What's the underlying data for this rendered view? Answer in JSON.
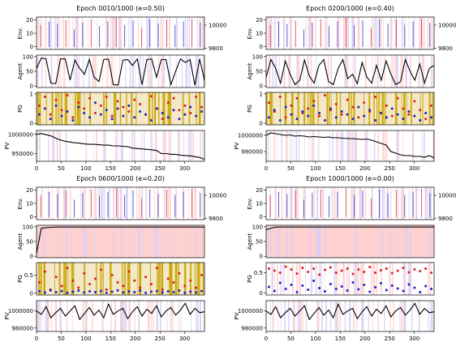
{
  "chart_data": [
    {
      "type": "composite",
      "title": "Epoch 0010/1000 (e=0.50)",
      "x_ticks": [
        0,
        50,
        100,
        150,
        200,
        250,
        300
      ],
      "xlim": [
        0,
        340
      ],
      "panels": [
        {
          "kind": "env",
          "ylabel": "Env.",
          "ylim": [
            -2,
            22
          ],
          "y_ticks": [
            0,
            10,
            20
          ],
          "ylim_right": [
            9790,
            10070
          ],
          "y_ticks_right": [
            9800,
            10000
          ],
          "price_series": [
            10000,
            10030,
            10010,
            10040,
            9960,
            10020,
            10050,
            9990,
            10030,
            10060,
            10000,
            10040,
            9970,
            10050,
            10010,
            10045,
            10000,
            10030,
            10055,
            10020
          ]
        },
        {
          "kind": "agent",
          "ylabel": "Agent",
          "ylim": [
            -5,
            105
          ],
          "y_ticks": [
            0,
            50,
            100
          ],
          "series": [
            60,
            95,
            92,
            10,
            8,
            92,
            92,
            20,
            88,
            60,
            40,
            90,
            30,
            15,
            90,
            92,
            5,
            3,
            88,
            90,
            70,
            92,
            5,
            90,
            92,
            30,
            90,
            90,
            5,
            50,
            92,
            80,
            90,
            3,
            92,
            20
          ]
        },
        {
          "kind": "pg",
          "ylabel": "PG",
          "ylim": [
            -0.05,
            1.05
          ],
          "y_ticks": [
            0,
            1
          ],
          "red_points": [
            0.6,
            0.9,
            0.3,
            0.8,
            0.45,
            0.95,
            0.2,
            0.7,
            0.5,
            0.85,
            0.35,
            0.6,
            0.9,
            0.25,
            0.75,
            0.55,
            0.4,
            0.8,
            0.65,
            0.3,
            0.92,
            0.5,
            0.15,
            0.7,
            0.85,
            0.45,
            0.6,
            0.35,
            0.9,
            0.55
          ],
          "blue_points": [
            0.3,
            0.5,
            0.15,
            0.6,
            0.25,
            0.4,
            0.1,
            0.55,
            0.35,
            0.2,
            0.7,
            0.3,
            0.45,
            0.15,
            0.5,
            0.25,
            0.6,
            0.2,
            0.4,
            0.3,
            0.1,
            0.5,
            0.35,
            0.2,
            0.45,
            0.15,
            0.3,
            0.55,
            0.25,
            0.4
          ]
        },
        {
          "kind": "pv",
          "ylabel": "PV",
          "ylim": [
            930000,
            1010000
          ],
          "y_ticks": [
            950000,
            1000000
          ],
          "series": [
            1000000,
            1002000,
            999000,
            996000,
            990000,
            985000,
            982000,
            980000,
            978000,
            977000,
            975000,
            974000,
            974000,
            973000,
            972000,
            972000,
            970000,
            970000,
            969000,
            968000,
            964000,
            963000,
            962000,
            961000,
            960000,
            958000,
            950000,
            950000,
            948000,
            948000,
            946000,
            945000,
            944000,
            942000,
            940000,
            935000
          ]
        }
      ]
    },
    {
      "type": "composite",
      "title": "Epoch 0200/1000 (e=0.40)",
      "x_ticks": [
        0,
        50,
        100,
        150,
        200,
        250,
        300
      ],
      "xlim": [
        0,
        340
      ],
      "panels": [
        {
          "kind": "env",
          "ylabel": "Env.",
          "ylim": [
            -2,
            22
          ],
          "y_ticks": [
            0,
            10,
            20
          ],
          "ylim_right": [
            9790,
            10070
          ],
          "y_ticks_right": [
            9800,
            10000
          ],
          "price_series": [
            10000,
            10030,
            10010,
            10040,
            9960,
            10020,
            10050,
            9990,
            10030,
            10060,
            10000,
            10040,
            9970,
            10050,
            10010,
            10045,
            10000,
            10030,
            10055,
            10020
          ]
        },
        {
          "kind": "agent",
          "ylabel": "Agent",
          "ylim": [
            -5,
            105
          ],
          "y_ticks": [
            0,
            50,
            100
          ],
          "series": [
            30,
            90,
            60,
            10,
            85,
            40,
            5,
            20,
            88,
            35,
            10,
            70,
            90,
            15,
            5,
            60,
            90,
            25,
            40,
            8,
            80,
            30,
            10,
            70,
            20,
            85,
            40,
            5,
            15,
            90,
            50,
            20,
            75,
            10,
            60,
            70
          ]
        },
        {
          "kind": "pg",
          "ylabel": "PG",
          "ylim": [
            -0.05,
            1.05
          ],
          "y_ticks": [
            0,
            1
          ],
          "red_points": [
            0.7,
            0.4,
            0.9,
            0.2,
            0.6,
            0.85,
            0.35,
            0.5,
            0.75,
            0.25,
            0.95,
            0.45,
            0.65,
            0.3,
            0.8,
            0.55,
            0.2,
            0.7,
            0.4,
            0.9,
            0.35,
            0.6,
            0.25,
            0.85,
            0.5,
            0.3,
            0.75,
            0.45,
            0.15,
            0.6
          ],
          "blue_points": [
            0.2,
            0.45,
            0.1,
            0.55,
            0.3,
            0.15,
            0.4,
            0.25,
            0.6,
            0.35,
            0.1,
            0.5,
            0.2,
            0.4,
            0.3,
            0.15,
            0.55,
            0.25,
            0.45,
            0.1,
            0.35,
            0.2,
            0.5,
            0.3,
            0.15,
            0.4,
            0.25,
            0.1,
            0.35,
            0.2
          ]
        },
        {
          "kind": "pv",
          "ylabel": "PV",
          "ylim": [
            968000,
            1006000
          ],
          "y_ticks": [
            980000,
            1000000
          ],
          "series": [
            1000000,
            1003000,
            1002000,
            1001000,
            1000000,
            1000500,
            999000,
            999500,
            999000,
            998000,
            998500,
            998000,
            997500,
            998000,
            997000,
            997000,
            996500,
            996000,
            996000,
            995500,
            995000,
            995500,
            994000,
            992000,
            990000,
            988000,
            980000,
            978000,
            976000,
            975000,
            975000,
            974000,
            974000,
            973000,
            975000,
            972000
          ]
        }
      ]
    },
    {
      "type": "composite",
      "title": "Epoch 0600/1000 (e=0.20)",
      "x_ticks": [
        0,
        50,
        100,
        150,
        200,
        250,
        300
      ],
      "xlim": [
        0,
        340
      ],
      "panels": [
        {
          "kind": "env",
          "ylabel": "Env.",
          "ylim": [
            -2,
            22
          ],
          "y_ticks": [
            0,
            10,
            20
          ],
          "ylim_right": [
            9790,
            10070
          ],
          "y_ticks_right": [
            9800,
            10000
          ],
          "price_series": [
            10000,
            10030,
            10010,
            10040,
            9960,
            10020,
            10050,
            9990,
            10030,
            10060,
            10000,
            10040,
            9970,
            10050,
            10010,
            10045,
            10000,
            10030,
            10055,
            10020
          ]
        },
        {
          "kind": "agent",
          "ylabel": "Agent",
          "ylim": [
            -5,
            105
          ],
          "y_ticks": [
            0,
            50,
            100
          ],
          "series": [
            10,
            95,
            97,
            98,
            99,
            99,
            99,
            99,
            99,
            99,
            99,
            99,
            99,
            99,
            99,
            99,
            99,
            99,
            99,
            99,
            99,
            99,
            99,
            99,
            99,
            99,
            99,
            99,
            99,
            99,
            99,
            99,
            99,
            99,
            99,
            99
          ]
        },
        {
          "kind": "pg",
          "ylabel": "PG",
          "ylim": [
            -0.05,
            0.85
          ],
          "y_ticks": [
            0,
            0.5
          ],
          "red_points": [
            0.3,
            0.6,
            0.1,
            0.45,
            0.2,
            0.7,
            0.35,
            0.15,
            0.55,
            0.25,
            0.4,
            0.65,
            0.1,
            0.5,
            0.3,
            0.2,
            0.6,
            0.35,
            0.15,
            0.45,
            0.25,
            0.7,
            0.1,
            0.4,
            0.3,
            0.55,
            0.2,
            0.35,
            0.15,
            0.5
          ],
          "blue_points": [
            0.05,
            0.02,
            0.08,
            0.03,
            0.06,
            0.01,
            0.04,
            0.07,
            0.02,
            0.05,
            0.03,
            0.06,
            0.01,
            0.04,
            0.08,
            0.02,
            0.05,
            0.03,
            0.07,
            0.01,
            0.04,
            0.06,
            0.02,
            0.05,
            0.03,
            0.07,
            0.01,
            0.04,
            0.02,
            0.06
          ]
        },
        {
          "kind": "pv",
          "ylabel": "PV",
          "ylim": [
            976000,
            1012000
          ],
          "y_ticks": [
            980000,
            1000000
          ],
          "series": [
            1000000,
            996000,
            1005000,
            992000,
            998000,
            1003000,
            994000,
            1000000,
            1006000,
            990000,
            997000,
            1004000,
            995000,
            1001000,
            992000,
            1008000,
            996000,
            1000000,
            1003000,
            991000,
            999000,
            1005000,
            994000,
            1002000,
            997000,
            1006000,
            993000,
            1000000,
            1004000,
            995000,
            1001000,
            1009000,
            996000,
            1003000,
            998000,
            999000
          ]
        }
      ]
    },
    {
      "type": "composite",
      "title": "Epoch 1000/1000 (e=0.00)",
      "x_ticks": [
        0,
        50,
        100,
        150,
        200,
        250,
        300
      ],
      "xlim": [
        0,
        340
      ],
      "panels": [
        {
          "kind": "env",
          "ylabel": "Env.",
          "ylim": [
            -2,
            22
          ],
          "y_ticks": [
            0,
            10,
            20
          ],
          "ylim_right": [
            9790,
            10070
          ],
          "y_ticks_right": [
            9800,
            10000
          ],
          "price_series": [
            10000,
            10030,
            10010,
            10040,
            9960,
            10020,
            10050,
            9990,
            10030,
            10060,
            10000,
            10040,
            9970,
            10050,
            10010,
            10045,
            10000,
            10030,
            10055,
            10020
          ]
        },
        {
          "kind": "agent",
          "ylabel": "Agent",
          "ylim": [
            -5,
            105
          ],
          "y_ticks": [
            0,
            50,
            100
          ],
          "series": [
            90,
            95,
            99,
            99,
            99,
            99,
            99,
            99,
            99,
            99,
            99,
            99,
            99,
            99,
            99,
            99,
            99,
            99,
            99,
            99,
            99,
            99,
            99,
            99,
            99,
            99,
            99,
            99,
            99,
            99,
            99,
            99,
            99,
            99,
            99,
            99
          ]
        },
        {
          "kind": "pg",
          "ylabel": "PG",
          "ylim": [
            -0.05,
            0.75
          ],
          "y_ticks": [
            0,
            0.5
          ],
          "red_points": [
            0.6,
            0.55,
            0.5,
            0.65,
            0.58,
            0.48,
            0.62,
            0.52,
            0.6,
            0.45,
            0.57,
            0.63,
            0.5,
            0.55,
            0.6,
            0.47,
            0.58,
            0.52,
            0.64,
            0.5,
            0.56,
            0.6,
            0.49,
            0.55,
            0.62,
            0.51,
            0.58,
            0.54,
            0.6,
            0.5
          ],
          "blue_points": [
            0.15,
            0.05,
            0.25,
            0.1,
            0.2,
            0.02,
            0.18,
            0.08,
            0.3,
            0.12,
            0.04,
            0.22,
            0.1,
            0.16,
            0.06,
            0.26,
            0.09,
            0.2,
            0.03,
            0.14,
            0.24,
            0.07,
            0.18,
            0.11,
            0.05,
            0.21,
            0.13,
            0.02,
            0.17,
            0.1
          ]
        },
        {
          "kind": "pv",
          "ylabel": "PV",
          "ylim": [
            976000,
            1012000
          ],
          "y_ticks": [
            980000,
            1000000
          ],
          "series": [
            1000000,
            996000,
            1005000,
            992000,
            998000,
            1003000,
            994000,
            1000000,
            1006000,
            990000,
            997000,
            1004000,
            995000,
            1001000,
            992000,
            1008000,
            996000,
            1000000,
            1003000,
            991000,
            999000,
            1005000,
            994000,
            1002000,
            997000,
            1006000,
            993000,
            1000000,
            1004000,
            995000,
            1001000,
            1009000,
            996000,
            1003000,
            998000,
            999000
          ]
        }
      ]
    }
  ],
  "colors": {
    "line": "#000000",
    "red": "#e41a1c",
    "blue": "#1f1fc8",
    "pg_bar": "#c8a400",
    "pink_span": "#ffd0d0",
    "lilac_span": "#d6d0f5",
    "grid_axis": "#000000"
  }
}
